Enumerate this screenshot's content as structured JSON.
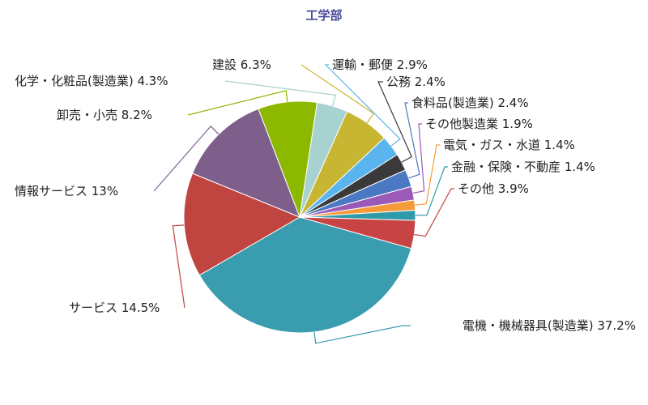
{
  "chart_data": {
    "type": "pie",
    "title": "工学部",
    "slices": [
      {
        "label": "電機・機械器具(製造業)",
        "value": 37.2,
        "value_text": "37.2%",
        "color": "#3a9caf"
      },
      {
        "label": "サービス",
        "value": 14.5,
        "value_text": "14.5%",
        "color": "#c0443f"
      },
      {
        "label": "情報サービス",
        "value": 13,
        "value_text": "13%",
        "color": "#7e5f8c"
      },
      {
        "label": "卸売・小売",
        "value": 8.2,
        "value_text": "8.2%",
        "color": "#8db800"
      },
      {
        "label": "化学・化粧品(製造業)",
        "value": 4.3,
        "value_text": "4.3%",
        "color": "#a7d2d0"
      },
      {
        "label": "建設",
        "value": 6.3,
        "value_text": "6.3%",
        "color": "#c8b531"
      },
      {
        "label": "運輸・郵便",
        "value": 2.9,
        "value_text": "2.9%",
        "color": "#5ab5ee"
      },
      {
        "label": "公務",
        "value": 2.4,
        "value_text": "2.4%",
        "color": "#3a3a3a"
      },
      {
        "label": "食料品(製造業)",
        "value": 2.4,
        "value_text": "2.4%",
        "color": "#4b78c2"
      },
      {
        "label": "その他製造業",
        "value": 1.9,
        "value_text": "1.9%",
        "color": "#9b5ab8"
      },
      {
        "label": "電気・ガス・水道",
        "value": 1.4,
        "value_text": "1.4%",
        "color": "#f79a3a"
      },
      {
        "label": "金融・保険・不動産",
        "value": 1.4,
        "value_text": "1.4%",
        "color": "#2f9aa8"
      },
      {
        "label": "その他",
        "value": 3.9,
        "value_text": "3.9%",
        "color": "#c84444"
      }
    ]
  }
}
